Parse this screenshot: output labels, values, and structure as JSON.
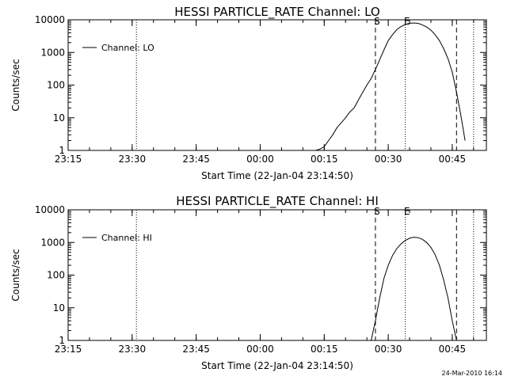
{
  "footer": {
    "timestamp": "24-Mar-2010 16:14"
  },
  "chart_data": [
    {
      "type": "line",
      "title": "HESSI PARTICLE_RATE Channel: LO",
      "xlabel": "Start Time (22-Jan-04 23:14:50)",
      "ylabel": "Counts/sec",
      "yscale": "log",
      "ylim": [
        1,
        10000
      ],
      "xlim": [
        "23:15",
        "00:53"
      ],
      "x_ticks": [
        "23:15",
        "23:30",
        "23:45",
        "00:00",
        "00:15",
        "00:30",
        "00:45"
      ],
      "y_ticks": [
        "1",
        "10",
        "100",
        "1000",
        "10000"
      ],
      "legend": {
        "position": "top-left",
        "entries": [
          "Channel: LO"
        ]
      },
      "markers": [
        {
          "label": "S",
          "time": "00:27",
          "style": "dashed"
        },
        {
          "label": "E",
          "time": "00:34",
          "style": "dotted"
        }
      ],
      "vlines": [
        {
          "time": "23:31",
          "style": "dotted"
        },
        {
          "time": "00:27",
          "style": "dashed"
        },
        {
          "time": "00:34",
          "style": "dotted"
        },
        {
          "time": "00:46",
          "style": "dashed"
        },
        {
          "time": "00:50",
          "style": "dotted"
        }
      ],
      "series": [
        {
          "name": "Channel: LO",
          "x": [
            "00:13",
            "00:14",
            "00:15",
            "00:16",
            "00:17",
            "00:18",
            "00:19",
            "00:20",
            "00:21",
            "00:22",
            "00:23",
            "00:24",
            "00:25",
            "00:26",
            "00:27",
            "00:28",
            "00:29",
            "00:30",
            "00:31",
            "00:32",
            "00:33",
            "00:34",
            "00:35",
            "00:36",
            "00:37",
            "00:38",
            "00:39",
            "00:40",
            "00:41",
            "00:42",
            "00:43",
            "00:44",
            "00:45",
            "00:46",
            "00:47",
            "00:48"
          ],
          "y": [
            1,
            1.1,
            1.3,
            2,
            3,
            5,
            7,
            10,
            15,
            20,
            35,
            60,
            100,
            160,
            300,
            600,
            1200,
            2300,
            3500,
            5000,
            6200,
            7200,
            7800,
            8000,
            7800,
            7000,
            6000,
            4800,
            3500,
            2300,
            1300,
            650,
            250,
            60,
            12,
            2
          ]
        }
      ]
    },
    {
      "type": "line",
      "title": "HESSI PARTICLE_RATE Channel: HI",
      "xlabel": "Start Time (22-Jan-04 23:14:50)",
      "ylabel": "Counts/sec",
      "yscale": "log",
      "ylim": [
        1,
        10000
      ],
      "xlim": [
        "23:15",
        "00:53"
      ],
      "x_ticks": [
        "23:15",
        "23:30",
        "23:45",
        "00:00",
        "00:15",
        "00:30",
        "00:45"
      ],
      "y_ticks": [
        "1",
        "10",
        "100",
        "1000",
        "10000"
      ],
      "legend": {
        "position": "top-left",
        "entries": [
          "Channel: HI"
        ]
      },
      "markers": [
        {
          "label": "S",
          "time": "00:27",
          "style": "dashed"
        },
        {
          "label": "E",
          "time": "00:34",
          "style": "dotted"
        }
      ],
      "vlines": [
        {
          "time": "23:31",
          "style": "dotted"
        },
        {
          "time": "00:27",
          "style": "dashed"
        },
        {
          "time": "00:34",
          "style": "dotted"
        },
        {
          "time": "00:46",
          "style": "dashed"
        },
        {
          "time": "00:50",
          "style": "dotted"
        }
      ],
      "series": [
        {
          "name": "Channel: HI",
          "x": [
            "00:26",
            "00:27",
            "00:28",
            "00:29",
            "00:30",
            "00:31",
            "00:32",
            "00:33",
            "00:34",
            "00:35",
            "00:36",
            "00:37",
            "00:38",
            "00:39",
            "00:40",
            "00:41",
            "00:42",
            "00:43",
            "00:44",
            "00:45",
            "00:46"
          ],
          "y": [
            1,
            4,
            20,
            80,
            200,
            400,
            650,
            900,
            1150,
            1350,
            1450,
            1400,
            1250,
            1000,
            700,
            420,
            200,
            70,
            20,
            4,
            1
          ]
        }
      ]
    }
  ]
}
